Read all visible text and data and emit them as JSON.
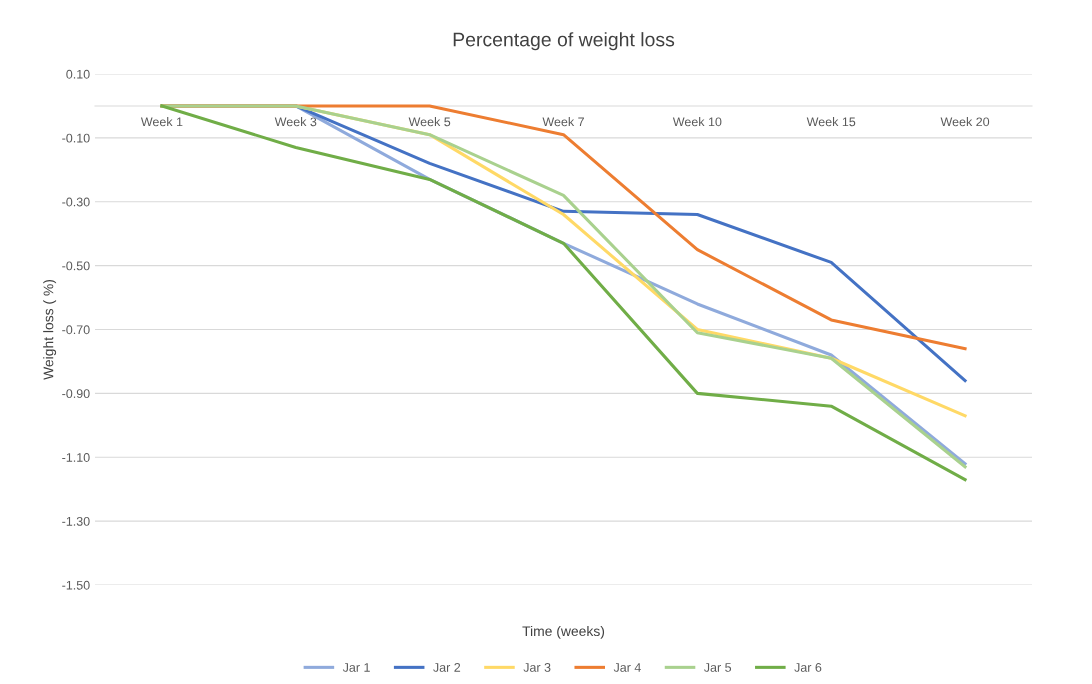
{
  "chart_data": {
    "type": "line",
    "title": "Percentage of weight loss",
    "xlabel": "Time (weeks)",
    "ylabel": "Weight loss ( %)",
    "categories": [
      "Week 1",
      "Week 3",
      "Week 5",
      "Week 7",
      "Week 10",
      "Week 15",
      "Week 20"
    ],
    "series": [
      {
        "name": "Jar 1",
        "color": "#8faadc",
        "values": [
          0,
          0,
          -0.23,
          -0.43,
          -0.62,
          -0.78,
          -1.12
        ]
      },
      {
        "name": "Jar 2",
        "color": "#4472c4",
        "values": [
          0,
          0,
          -0.18,
          -0.33,
          -0.34,
          -0.49,
          -0.86
        ]
      },
      {
        "name": "Jar 3",
        "color": "#ffd966",
        "values": [
          0,
          0,
          -0.09,
          -0.34,
          -0.7,
          -0.79,
          -0.97
        ]
      },
      {
        "name": "Jar 4",
        "color": "#ed7d31",
        "values": [
          0,
          0,
          0,
          -0.09,
          -0.45,
          -0.67,
          -0.76
        ]
      },
      {
        "name": "Jar 5",
        "color": "#a9d18e",
        "values": [
          0,
          0,
          -0.09,
          -0.28,
          -0.71,
          -0.79,
          -1.13
        ]
      },
      {
        "name": "Jar 6",
        "color": "#70ad47",
        "values": [
          0,
          -0.13,
          -0.23,
          -0.43,
          -0.9,
          -0.94,
          -1.17
        ]
      }
    ],
    "ylim": [
      -1.5,
      0.1
    ],
    "yticks": [
      {
        "value": 0.1,
        "label": "0.10"
      },
      {
        "value": -0.1,
        "label": "-0.10"
      },
      {
        "value": -0.3,
        "label": "-0.30"
      },
      {
        "value": -0.5,
        "label": "-0.50"
      },
      {
        "value": -0.7,
        "label": "-0.70"
      },
      {
        "value": -0.9,
        "label": "-0.90"
      },
      {
        "value": -1.1,
        "label": "-1.10"
      },
      {
        "value": -1.3,
        "label": "-1.30"
      },
      {
        "value": -1.5,
        "label": "-1.50"
      }
    ],
    "grid": "y",
    "legend": "bottom",
    "marker": "none",
    "line_style": "solid"
  }
}
